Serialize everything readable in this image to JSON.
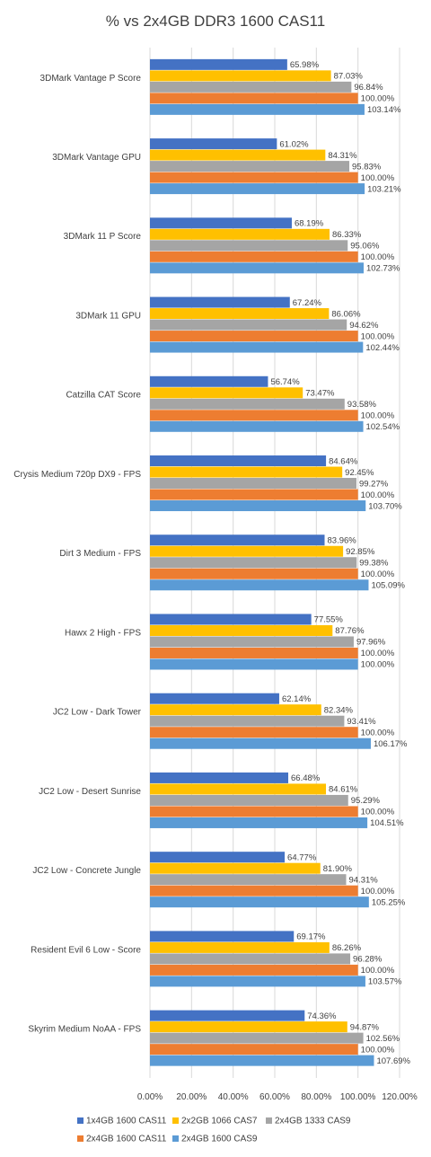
{
  "chart_data": {
    "type": "bar",
    "orientation": "horizontal",
    "title": "% vs 2x4GB DDR3 1600 CAS11",
    "categories": [
      "3DMark Vantage P Score",
      "3DMark Vantage GPU",
      "3DMark 11 P Score",
      "3DMark 11 GPU",
      "Catzilla CAT Score",
      "Crysis Medium 720p DX9 - FPS",
      "Dirt 3 Medium - FPS",
      "Hawx 2 High - FPS",
      "JC2 Low - Dark Tower",
      "JC2 Low - Desert Sunrise",
      "JC2 Low - Concrete Jungle",
      "Resident Evil 6 Low - Score",
      "Skyrim Medium NoAA - FPS"
    ],
    "series": [
      {
        "name": "1x4GB 1600 CAS11",
        "color": "#4472C4",
        "values": [
          65.98,
          61.02,
          68.19,
          67.24,
          56.74,
          84.64,
          83.96,
          77.55,
          62.14,
          66.48,
          64.77,
          69.17,
          74.36
        ],
        "labels": [
          "65.98%",
          "61.02%",
          "68.19%",
          "67.24%",
          "56.74%",
          "84.64%",
          "83.96%",
          "77.55%",
          "62.14%",
          "66.48%",
          "64.77%",
          "69.17%",
          "74.36%"
        ]
      },
      {
        "name": "2x2GB 1066 CAS7",
        "color": "#FFC000",
        "values": [
          87.03,
          84.31,
          86.33,
          86.06,
          73.47,
          92.45,
          92.85,
          87.76,
          82.34,
          84.61,
          81.9,
          86.26,
          94.87
        ],
        "labels": [
          "87.03%",
          "84.31%",
          "86.33%",
          "86.06%",
          "73.47%",
          "92.45%",
          "92.85%",
          "87.76%",
          "82.34%",
          "84.61%",
          "81.90%",
          "86.26%",
          "94.87%"
        ]
      },
      {
        "name": "2x4GB 1333 CAS9",
        "color": "#A5A5A5",
        "values": [
          96.84,
          95.83,
          95.06,
          94.62,
          93.58,
          99.27,
          99.38,
          97.96,
          93.41,
          95.29,
          94.31,
          96.28,
          102.56
        ],
        "labels": [
          "96.84%",
          "95.83%",
          "95.06%",
          "94.62%",
          "93.58%",
          "99.27%",
          "99.38%",
          "97.96%",
          "93.41%",
          "95.29%",
          "94.31%",
          "96.28%",
          "102.56%"
        ]
      },
      {
        "name": "2x4GB 1600 CAS11",
        "color": "#ED7D31",
        "values": [
          100,
          100,
          100,
          100,
          100,
          100,
          100,
          100,
          100,
          100,
          100,
          100,
          100
        ],
        "labels": [
          "100.00%",
          "100.00%",
          "100.00%",
          "100.00%",
          "100.00%",
          "100.00%",
          "100.00%",
          "100.00%",
          "100.00%",
          "100.00%",
          "100.00%",
          "100.00%",
          "100.00%"
        ]
      },
      {
        "name": "2x4GB 1600 CAS9",
        "color": "#5B9BD5",
        "values": [
          103.14,
          103.21,
          102.73,
          102.44,
          102.54,
          103.7,
          105.09,
          100.0,
          106.17,
          104.51,
          105.25,
          103.57,
          107.69
        ],
        "labels": [
          "103.14%",
          "103.21%",
          "102.73%",
          "102.44%",
          "102.54%",
          "103.70%",
          "105.09%",
          "100.00%",
          "106.17%",
          "104.51%",
          "105.25%",
          "103.57%",
          "107.69%"
        ]
      }
    ],
    "xlim": [
      0,
      120
    ],
    "xticks": [
      0,
      20,
      40,
      60,
      80,
      100,
      120
    ],
    "xtick_labels": [
      "0.00%",
      "20.00%",
      "40.00%",
      "60.00%",
      "80.00%",
      "100.00%",
      "120.00%"
    ],
    "grid": true,
    "legend_position": "bottom"
  }
}
